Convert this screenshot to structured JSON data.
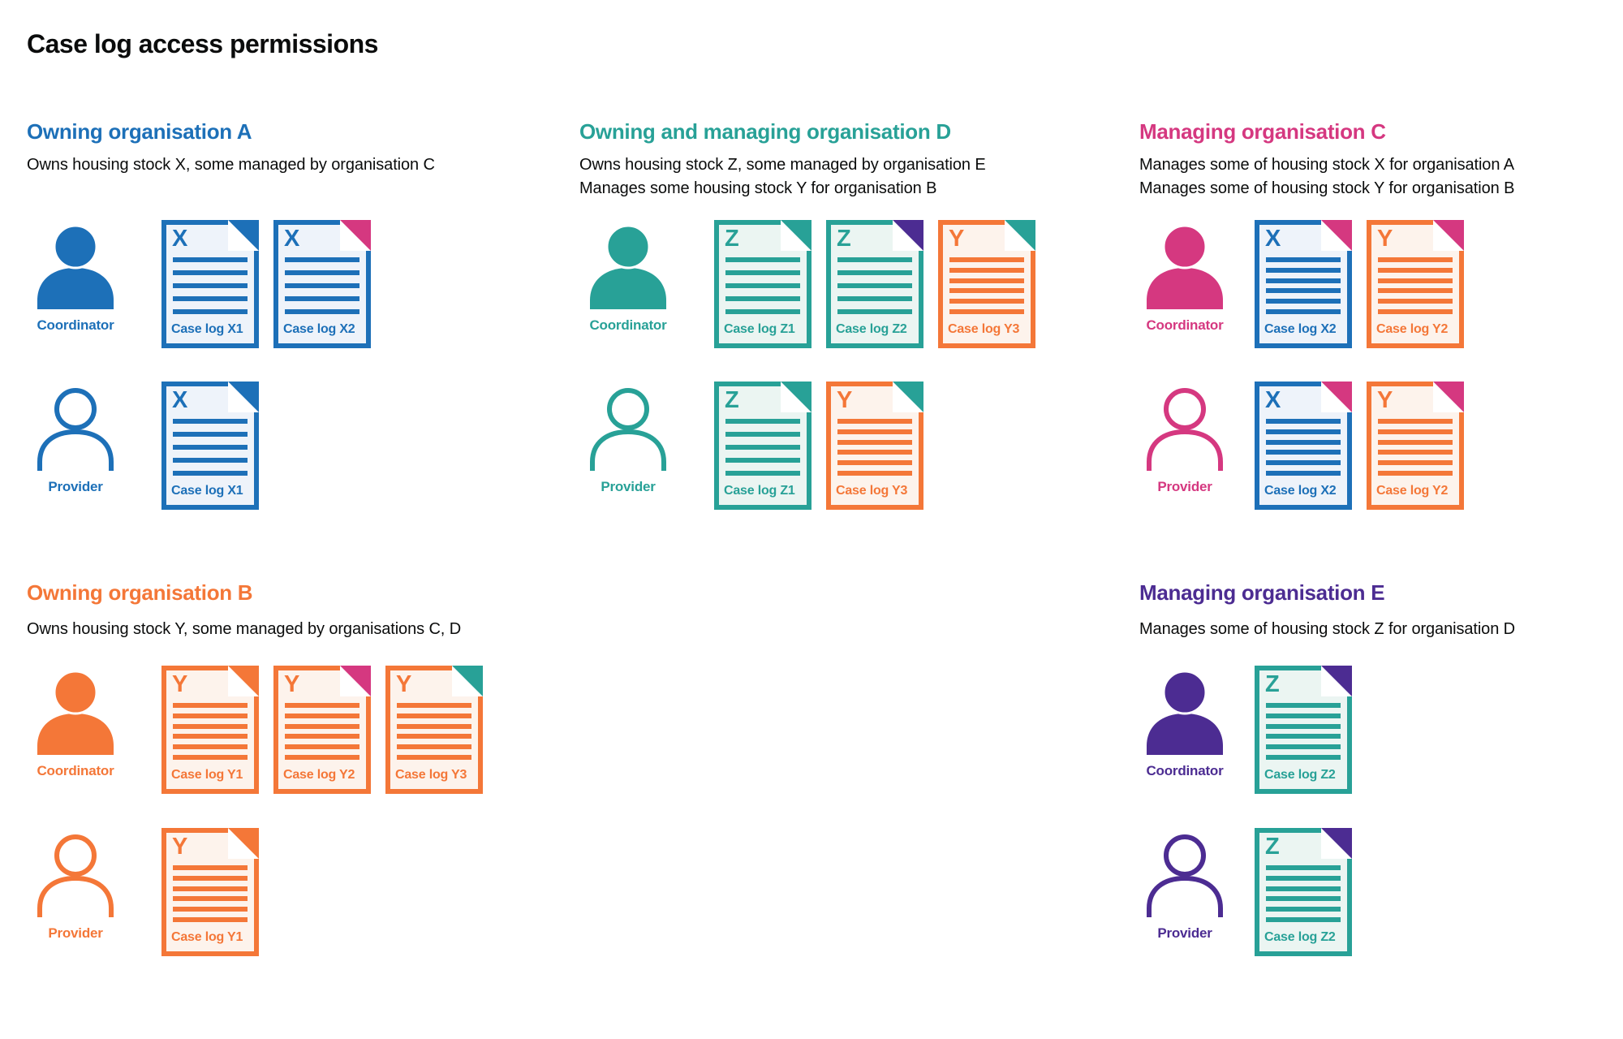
{
  "page_title": "Case log access permissions",
  "colors": {
    "blue": "#1d70b8",
    "teal": "#28a197",
    "pink": "#d53880",
    "orange": "#f47738",
    "purple": "#4c2c92",
    "text": "#0b0c0c",
    "tint_blue": "#eef3fa",
    "tint_teal": "#ebf5f2",
    "tint_orange": "#fdf3ec"
  },
  "sections": [
    {
      "id": "owning-organisation-a",
      "title": "Owning organisation A",
      "color": "blue",
      "description": [
        "Owns housing stock X, some managed by organisation C"
      ],
      "rows": [
        {
          "role": "Coordinator",
          "variant": "filled",
          "docs": [
            {
              "letter": "X",
              "label": "Case log X1",
              "owner": "blue",
              "fold": "blue",
              "lines": 5
            },
            {
              "letter": "X",
              "label": "Case log X2",
              "owner": "blue",
              "fold": "pink",
              "lines": 5
            }
          ]
        },
        {
          "role": "Provider",
          "variant": "outline",
          "docs": [
            {
              "letter": "X",
              "label": "Case log X1",
              "owner": "blue",
              "fold": "blue",
              "lines": 5
            }
          ]
        }
      ]
    },
    {
      "id": "owning-and-managing-organisation-d",
      "title": "Owning and managing organisation D",
      "color": "teal",
      "description": [
        "Owns housing stock Z, some managed by organisation E",
        "Manages some housing stock Y for organisation B"
      ],
      "rows": [
        {
          "role": "Coordinator",
          "variant": "filled",
          "docs": [
            {
              "letter": "Z",
              "label": "Case log Z1",
              "owner": "teal",
              "fold": "teal",
              "lines": 5
            },
            {
              "letter": "Z",
              "label": "Case log Z2",
              "owner": "teal",
              "fold": "purple",
              "lines": 5
            },
            {
              "letter": "Y",
              "label": "Case log Y3",
              "owner": "orange",
              "fold": "teal",
              "lines": 6
            }
          ]
        },
        {
          "role": "Provider",
          "variant": "outline",
          "docs": [
            {
              "letter": "Z",
              "label": "Case log Z1",
              "owner": "teal",
              "fold": "teal",
              "lines": 5
            },
            {
              "letter": "Y",
              "label": "Case log Y3",
              "owner": "orange",
              "fold": "teal",
              "lines": 6
            }
          ]
        }
      ]
    },
    {
      "id": "managing-organisation-c",
      "title": "Managing organisation C",
      "color": "pink",
      "description": [
        "Manages some of housing stock X for organisation A",
        "Manages some of housing stock Y for organisation B"
      ],
      "rows": [
        {
          "role": "Coordinator",
          "variant": "filled",
          "docs": [
            {
              "letter": "X",
              "label": "Case log X2",
              "owner": "blue",
              "fold": "pink",
              "lines": 6
            },
            {
              "letter": "Y",
              "label": "Case log Y2",
              "owner": "orange",
              "fold": "pink",
              "lines": 6
            }
          ]
        },
        {
          "role": "Provider",
          "variant": "outline",
          "docs": [
            {
              "letter": "X",
              "label": "Case log X2",
              "owner": "blue",
              "fold": "pink",
              "lines": 6
            },
            {
              "letter": "Y",
              "label": "Case log Y2",
              "owner": "orange",
              "fold": "pink",
              "lines": 6
            }
          ]
        }
      ]
    },
    {
      "id": "owning-organisation-b",
      "title": "Owning organisation B",
      "color": "orange",
      "description": [
        "Owns housing stock Y, some managed by organisations C, D"
      ],
      "rows": [
        {
          "role": "Coordinator",
          "variant": "filled",
          "docs": [
            {
              "letter": "Y",
              "label": "Case log Y1",
              "owner": "orange",
              "fold": "orange",
              "lines": 6
            },
            {
              "letter": "Y",
              "label": "Case log Y2",
              "owner": "orange",
              "fold": "pink",
              "lines": 6
            },
            {
              "letter": "Y",
              "label": "Case log Y3",
              "owner": "orange",
              "fold": "teal",
              "lines": 6
            }
          ]
        },
        {
          "role": "Provider",
          "variant": "outline",
          "docs": [
            {
              "letter": "Y",
              "label": "Case log Y1",
              "owner": "orange",
              "fold": "orange",
              "lines": 6
            }
          ]
        }
      ]
    },
    {
      "id": "managing-organisation-e",
      "title": "Managing organisation E",
      "color": "purple",
      "description": [
        "Manages some of housing stock Z for organisation D"
      ],
      "rows": [
        {
          "role": "Coordinator",
          "variant": "filled",
          "docs": [
            {
              "letter": "Z",
              "label": "Case log Z2",
              "owner": "teal",
              "fold": "purple",
              "lines": 6
            }
          ]
        },
        {
          "role": "Provider",
          "variant": "outline",
          "docs": [
            {
              "letter": "Z",
              "label": "Case log Z2",
              "owner": "teal",
              "fold": "purple",
              "lines": 6
            }
          ]
        }
      ]
    }
  ]
}
